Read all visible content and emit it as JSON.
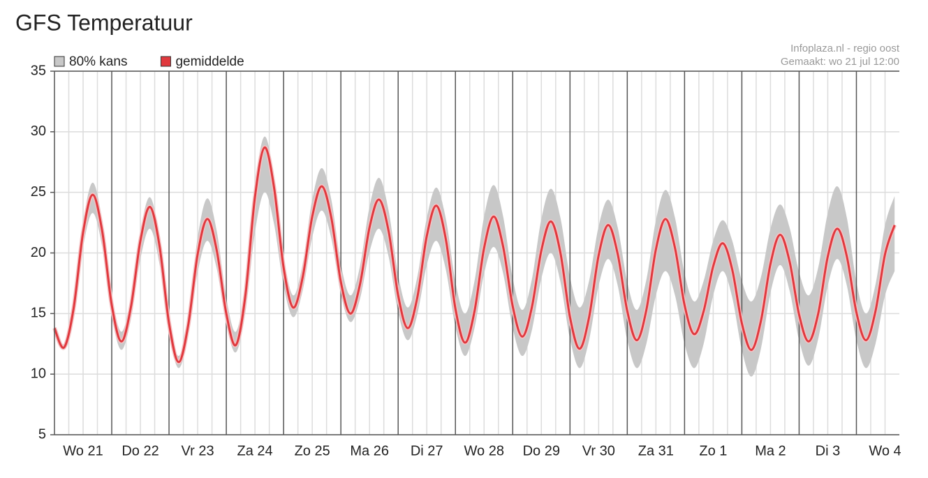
{
  "chart_data": {
    "type": "band-line",
    "title": "GFS Temperatuur",
    "source": "Infoplaza.nl - regio oost",
    "made": "Gemaakt: wo 21 jul 12:00",
    "x": [
      0,
      4,
      8,
      12,
      16,
      20,
      24,
      28,
      32,
      36,
      40,
      44,
      48,
      52,
      56,
      60,
      64,
      68,
      72,
      76,
      80,
      84,
      88,
      92,
      96,
      100,
      104,
      108,
      112,
      116,
      120,
      124,
      128,
      132,
      136,
      140,
      144,
      148,
      152,
      156,
      160,
      164,
      168,
      172,
      176,
      180,
      184,
      188,
      192,
      196,
      200,
      204,
      208,
      212,
      216,
      220,
      224,
      228,
      232,
      236,
      240,
      244,
      248,
      252,
      256,
      260,
      264,
      268,
      272,
      276,
      280,
      284,
      288,
      292,
      296,
      300,
      304,
      308,
      312,
      316,
      320,
      324,
      328,
      332,
      336,
      340,
      344,
      348,
      352
    ],
    "series": [
      {
        "name": "80% kans",
        "color": "#c8c8c8",
        "low": [
          13.5,
          12.0,
          14.8,
          20.5,
          23.3,
          20.5,
          14.8,
          12.0,
          14.5,
          19.5,
          22.0,
          19.1,
          13.4,
          10.5,
          13.1,
          18.4,
          21.0,
          18.7,
          14.1,
          11.8,
          15.1,
          21.7,
          25.0,
          22.4,
          17.3,
          14.7,
          16.9,
          21.3,
          23.5,
          21.2,
          16.6,
          14.3,
          16.2,
          20.1,
          22.0,
          19.7,
          15.1,
          12.8,
          14.9,
          19.0,
          21.0,
          18.6,
          13.9,
          11.5,
          13.8,
          18.3,
          20.5,
          18.3,
          13.8,
          11.5,
          13.6,
          17.9,
          20.0,
          17.6,
          12.9,
          10.5,
          12.8,
          17.3,
          19.5,
          17.3,
          12.8,
          10.5,
          12.5,
          16.5,
          18.5,
          16.5,
          12.5,
          10.5,
          12.5,
          16.5,
          18.5,
          16.3,
          12.0,
          9.8,
          12.1,
          16.7,
          19.0,
          16.9,
          12.8,
          10.7,
          12.9,
          17.3,
          19.5,
          17.3,
          12.8,
          10.5,
          12.5,
          16.5,
          18.5
        ],
        "high": [
          14.0,
          12.5,
          15.8,
          22.5,
          25.8,
          22.7,
          16.6,
          13.5,
          16.3,
          21.8,
          24.6,
          21.3,
          14.8,
          11.5,
          14.8,
          21.3,
          24.5,
          21.8,
          16.3,
          13.5,
          17.5,
          25.6,
          29.6,
          26.3,
          19.8,
          16.5,
          19.1,
          24.4,
          27.0,
          24.4,
          19.1,
          16.5,
          18.9,
          23.8,
          26.2,
          23.5,
          18.2,
          15.5,
          18.0,
          22.9,
          25.4,
          22.8,
          17.6,
          15.0,
          17.7,
          23.0,
          25.6,
          23.0,
          17.9,
          15.3,
          17.8,
          22.8,
          25.3,
          22.9,
          18.0,
          15.5,
          17.7,
          22.2,
          24.4,
          22.1,
          17.6,
          15.3,
          17.8,
          22.7,
          25.2,
          22.9,
          18.3,
          16.0,
          17.7,
          21.0,
          22.7,
          21.0,
          17.7,
          16.0,
          18.0,
          22.0,
          24.0,
          22.1,
          18.4,
          16.5,
          18.8,
          23.3,
          25.5,
          22.9,
          17.6,
          15.0,
          17.4,
          22.3,
          24.7
        ]
      },
      {
        "name": "gemiddelde",
        "color": "#e0393e",
        "values": [
          13.8,
          12.2,
          15.4,
          21.7,
          24.8,
          21.8,
          15.7,
          12.7,
          15.5,
          21.0,
          23.8,
          20.6,
          14.2,
          11.0,
          14.0,
          19.9,
          22.8,
          20.2,
          15.0,
          12.4,
          16.5,
          24.6,
          28.7,
          25.4,
          18.8,
          15.5,
          18.0,
          23.0,
          25.5,
          22.9,
          17.6,
          15.0,
          17.4,
          22.1,
          24.4,
          21.8,
          16.5,
          13.8,
          16.3,
          21.4,
          23.9,
          21.1,
          15.4,
          12.6,
          15.2,
          20.4,
          23.0,
          20.5,
          15.6,
          13.1,
          15.5,
          20.2,
          22.6,
          20.0,
          14.7,
          12.1,
          14.7,
          19.8,
          22.3,
          19.9,
          15.2,
          12.8,
          15.3,
          20.3,
          22.8,
          20.4,
          15.7,
          13.3,
          15.2,
          18.9,
          20.8,
          18.6,
          14.2,
          12.0,
          14.4,
          19.1,
          21.5,
          19.3,
          14.9,
          12.7,
          15.0,
          19.7,
          22.0,
          19.7,
          15.1,
          12.8,
          15.2,
          19.9,
          22.3
        ]
      }
    ],
    "xlim": [
      0,
      354
    ],
    "xticks": [
      {
        "value": 12,
        "label": "Wo 21"
      },
      {
        "value": 36,
        "label": "Do 22"
      },
      {
        "value": 60,
        "label": "Vr 23"
      },
      {
        "value": 84,
        "label": "Za 24"
      },
      {
        "value": 108,
        "label": "Zo 25"
      },
      {
        "value": 132,
        "label": "Ma 26"
      },
      {
        "value": 156,
        "label": "Di 27"
      },
      {
        "value": 180,
        "label": "Wo 28"
      },
      {
        "value": 204,
        "label": "Do 29"
      },
      {
        "value": 228,
        "label": "Vr 30"
      },
      {
        "value": 252,
        "label": "Za 31"
      },
      {
        "value": 276,
        "label": "Zo 1"
      },
      {
        "value": 300,
        "label": "Ma 2"
      },
      {
        "value": 324,
        "label": "Di 3"
      },
      {
        "value": 348,
        "label": "Wo 4"
      }
    ],
    "xgrid_major": [
      24,
      48,
      72,
      96,
      120,
      144,
      168,
      192,
      216,
      240,
      264,
      288,
      312,
      336
    ],
    "xgrid_minor": [
      6,
      12,
      18,
      30,
      36,
      42,
      54,
      60,
      66,
      78,
      84,
      90,
      102,
      108,
      114,
      126,
      132,
      138,
      150,
      156,
      162,
      174,
      180,
      186,
      198,
      204,
      210,
      222,
      228,
      234,
      246,
      252,
      258,
      270,
      276,
      282,
      294,
      300,
      306,
      318,
      324,
      330,
      342,
      348
    ],
    "ylim": [
      5,
      35
    ],
    "yticks": [
      5,
      10,
      15,
      20,
      25,
      30,
      35
    ],
    "grid": true
  }
}
